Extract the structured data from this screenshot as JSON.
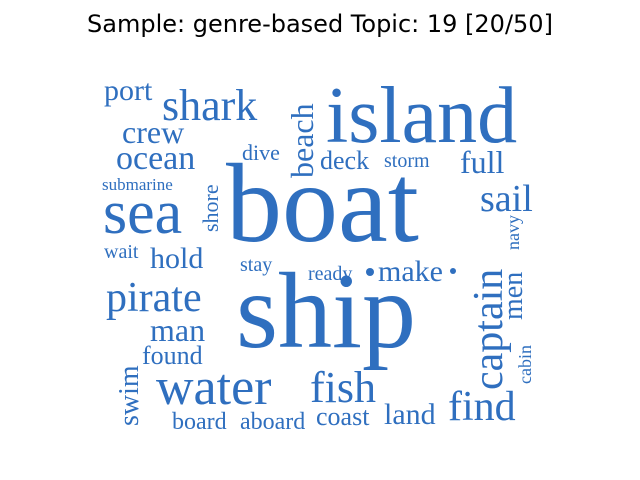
{
  "title": "Sample: genre-based Topic: 19 [20/50]",
  "word_color": "#2f6fbf",
  "words": {
    "boat": "boat",
    "ship": "ship",
    "island": "island",
    "sea": "sea",
    "water": "water",
    "pirate": "pirate",
    "shark": "shark",
    "captain": "captain",
    "fish": "fish",
    "find": "find",
    "sail": "sail",
    "crew": "crew",
    "ocean": "ocean",
    "port": "port",
    "beach": "beach",
    "hold": "hold",
    "man": "man",
    "make": "make",
    "full": "full",
    "deck": "deck",
    "storm": "storm",
    "dive": "dive",
    "shore": "shore",
    "submarine": "submarine",
    "wait": "wait",
    "stay": "stay",
    "ready": "ready",
    "men": "men",
    "navy": "navy",
    "found": "found",
    "swim": "swim",
    "cabin": "cabin",
    "board": "board",
    "aboard": "aboard",
    "coast": "coast",
    "land": "land"
  }
}
